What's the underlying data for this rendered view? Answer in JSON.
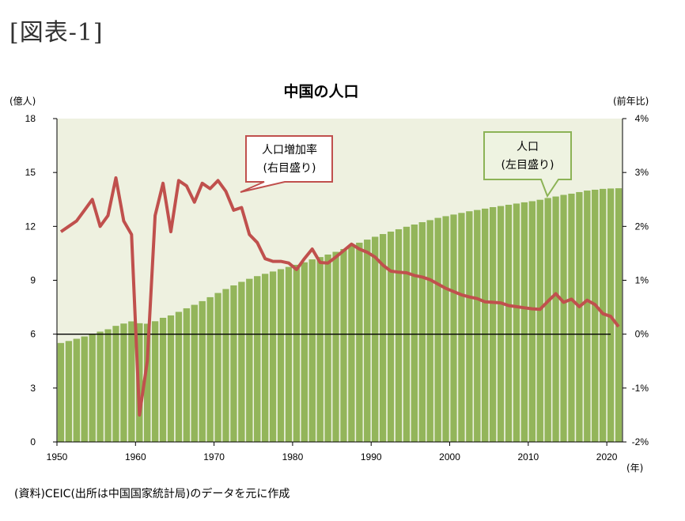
{
  "figure_label": "[図表-1]",
  "source_note": "(資料)CEIC(出所は中国国家統計局)のデータを元に作成",
  "colors": {
    "plot_background": "#eef1e0",
    "bar": "#93b55a",
    "bar_edge": "#ffffff",
    "line": "#c0504d",
    "zero_line": "#000000",
    "callout_line_bg": "#ffffff",
    "callout_line_border": "#c0504d",
    "callout_pop_bg": "#eef3e1",
    "callout_pop_border": "#8cb356"
  },
  "callouts": {
    "growth": [
      "人口増加率",
      "(右目盛り)"
    ],
    "population": [
      "人口",
      "(左目盛り)"
    ]
  },
  "chart_data": {
    "type": "bar+line",
    "title": "中国の人口",
    "left_axis": {
      "label": "(億人)",
      "min": 0,
      "max": 18,
      "ticks": [
        "0",
        "3",
        "6",
        "9",
        "12",
        "15",
        "18"
      ]
    },
    "right_axis": {
      "label": "(前年比)",
      "min": -2,
      "max": 4,
      "ticks": [
        "-2%",
        "-1%",
        "0%",
        "1%",
        "2%",
        "3%",
        "4%"
      ]
    },
    "x_axis": {
      "label": "(年)",
      "ticks": [
        "1950",
        "1960",
        "1970",
        "1980",
        "1990",
        "2000",
        "2010",
        "2020"
      ]
    },
    "grid": false,
    "years": [
      1950,
      1951,
      1952,
      1953,
      1954,
      1955,
      1956,
      1957,
      1958,
      1959,
      1960,
      1961,
      1962,
      1963,
      1964,
      1965,
      1966,
      1967,
      1968,
      1969,
      1970,
      1971,
      1972,
      1973,
      1974,
      1975,
      1976,
      1977,
      1978,
      1979,
      1980,
      1981,
      1982,
      1983,
      1984,
      1985,
      1986,
      1987,
      1988,
      1989,
      1990,
      1991,
      1992,
      1993,
      1994,
      1995,
      1996,
      1997,
      1998,
      1999,
      2000,
      2001,
      2002,
      2003,
      2004,
      2005,
      2006,
      2007,
      2008,
      2009,
      2010,
      2011,
      2012,
      2013,
      2014,
      2015,
      2016,
      2017,
      2018,
      2019,
      2020,
      2021
    ],
    "series": [
      {
        "name": "人口",
        "axis": "left",
        "kind": "bar",
        "values": [
          5.52,
          5.63,
          5.75,
          5.88,
          6.03,
          6.15,
          6.28,
          6.47,
          6.6,
          6.72,
          6.62,
          6.59,
          6.73,
          6.92,
          7.05,
          7.25,
          7.45,
          7.64,
          7.85,
          8.07,
          8.3,
          8.52,
          8.72,
          8.92,
          9.09,
          9.24,
          9.37,
          9.5,
          9.63,
          9.75,
          9.87,
          10.01,
          10.17,
          10.3,
          10.44,
          10.59,
          10.75,
          10.93,
          11.1,
          11.27,
          11.43,
          11.58,
          11.72,
          11.85,
          11.99,
          12.11,
          12.24,
          12.36,
          12.48,
          12.58,
          12.67,
          12.76,
          12.85,
          12.92,
          13.0,
          13.08,
          13.14,
          13.21,
          13.28,
          13.35,
          13.41,
          13.49,
          13.59,
          13.67,
          13.76,
          13.83,
          13.92,
          14.0,
          14.05,
          14.1,
          14.12,
          14.13
        ]
      },
      {
        "name": "人口増加率",
        "axis": "right",
        "kind": "line",
        "values": [
          1.9,
          2.0,
          2.1,
          2.3,
          2.5,
          2.0,
          2.2,
          2.9,
          2.1,
          1.85,
          -1.5,
          -0.5,
          2.2,
          2.8,
          1.9,
          2.85,
          2.75,
          2.45,
          2.8,
          2.7,
          2.85,
          2.65,
          2.3,
          2.35,
          1.85,
          1.7,
          1.4,
          1.35,
          1.35,
          1.32,
          1.2,
          1.4,
          1.58,
          1.33,
          1.32,
          1.43,
          1.55,
          1.67,
          1.58,
          1.52,
          1.43,
          1.28,
          1.17,
          1.15,
          1.14,
          1.09,
          1.06,
          1.01,
          0.93,
          0.85,
          0.79,
          0.73,
          0.69,
          0.66,
          0.6,
          0.59,
          0.58,
          0.53,
          0.51,
          0.49,
          0.47,
          0.46,
          0.61,
          0.75,
          0.59,
          0.65,
          0.51,
          0.63,
          0.55,
          0.38,
          0.33,
          0.14
        ]
      }
    ]
  }
}
